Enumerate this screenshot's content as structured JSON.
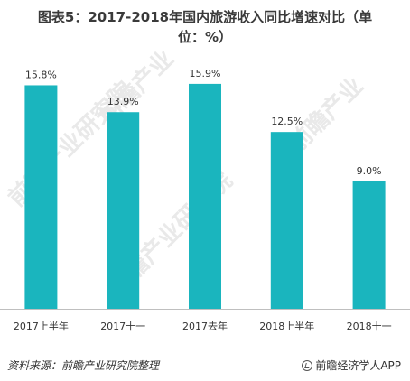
{
  "title_line1": "图表5：2017-2018年国内旅游收入同比增速对比（单",
  "title_line2": "位：%）",
  "footer": {
    "source": "资料来源：前瞻产业研究院整理",
    "brand": "前瞻经济学人APP",
    "brand_icon": "qianzhan-logo-icon"
  },
  "colors": {
    "bar": "#1ab5be",
    "axis": "#bfbfbf"
  },
  "chart_data": {
    "type": "bar",
    "title": "图表5：2017-2018年国内旅游收入同比增速对比（单位：%）",
    "categories": [
      "2017上半年",
      "2017十一",
      "2017去年",
      "2018上半年",
      "2018十一"
    ],
    "values": [
      15.8,
      13.9,
      15.9,
      12.5,
      9.0
    ],
    "value_labels": [
      "15.8%",
      "13.9%",
      "15.9%",
      "12.5%",
      "9.0%"
    ],
    "ylim": [
      0,
      18
    ],
    "grid": false,
    "legend": "none"
  }
}
